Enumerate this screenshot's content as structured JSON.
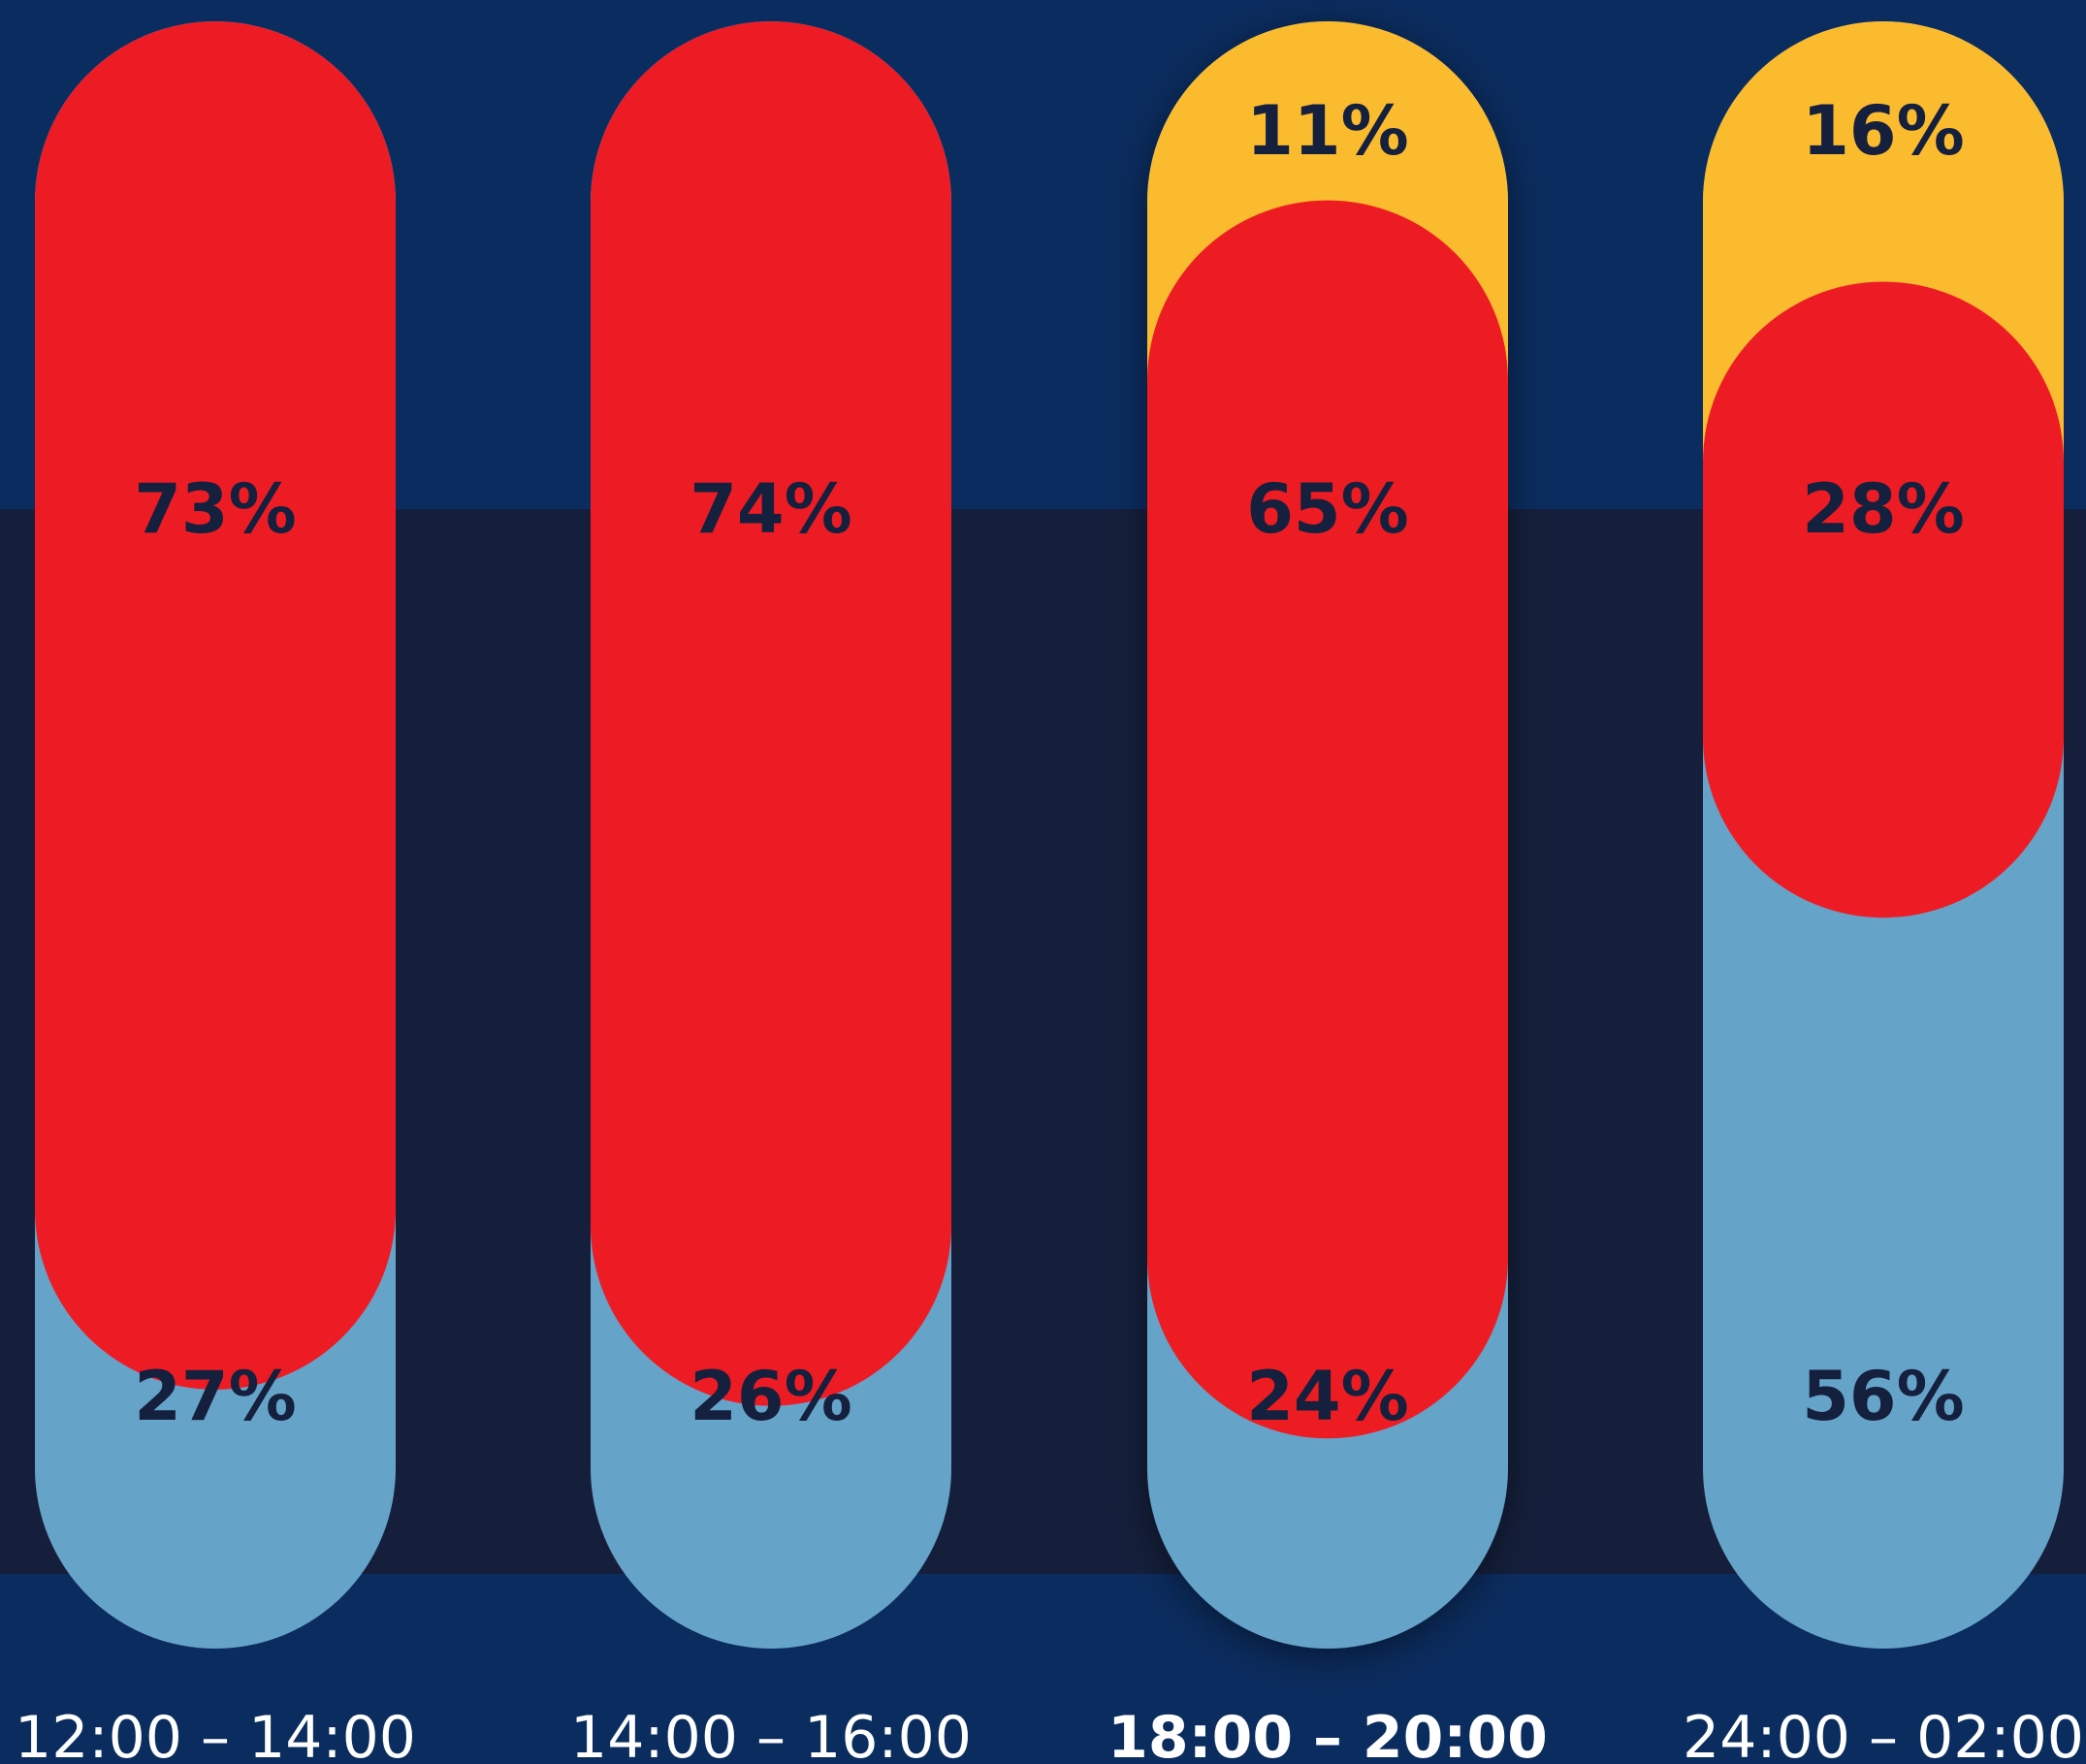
{
  "chart_data": {
    "type": "bar",
    "stacked": true,
    "categories": [
      "12:00 – 14:00",
      "14:00 – 16:00",
      "18:00 – 20:00",
      "24:00 – 02:00"
    ],
    "highlighted_category": "18:00 – 20:00",
    "series": [
      {
        "color": "#66a3c9",
        "values": [
          27,
          26,
          24,
          56
        ],
        "labels": [
          "27%",
          "26%",
          "24%",
          "56%"
        ]
      },
      {
        "color": "#ed1c24",
        "values": [
          73,
          74,
          65,
          28
        ],
        "labels": [
          "73%",
          "74%",
          "65%",
          "28%"
        ]
      },
      {
        "color": "#fbbb2e",
        "values": [
          0,
          0,
          11,
          16
        ],
        "labels": [
          "",
          "",
          "11%",
          "16%"
        ]
      }
    ],
    "title": "",
    "xlabel": "",
    "ylabel": "",
    "ylim": [
      0,
      100
    ],
    "legend": "none",
    "grid": false
  },
  "colors": {
    "background_outer": "#0b2c5e",
    "background_band": "#151f3b",
    "label_text": "#14203d",
    "time_text": "#ffffff"
  }
}
